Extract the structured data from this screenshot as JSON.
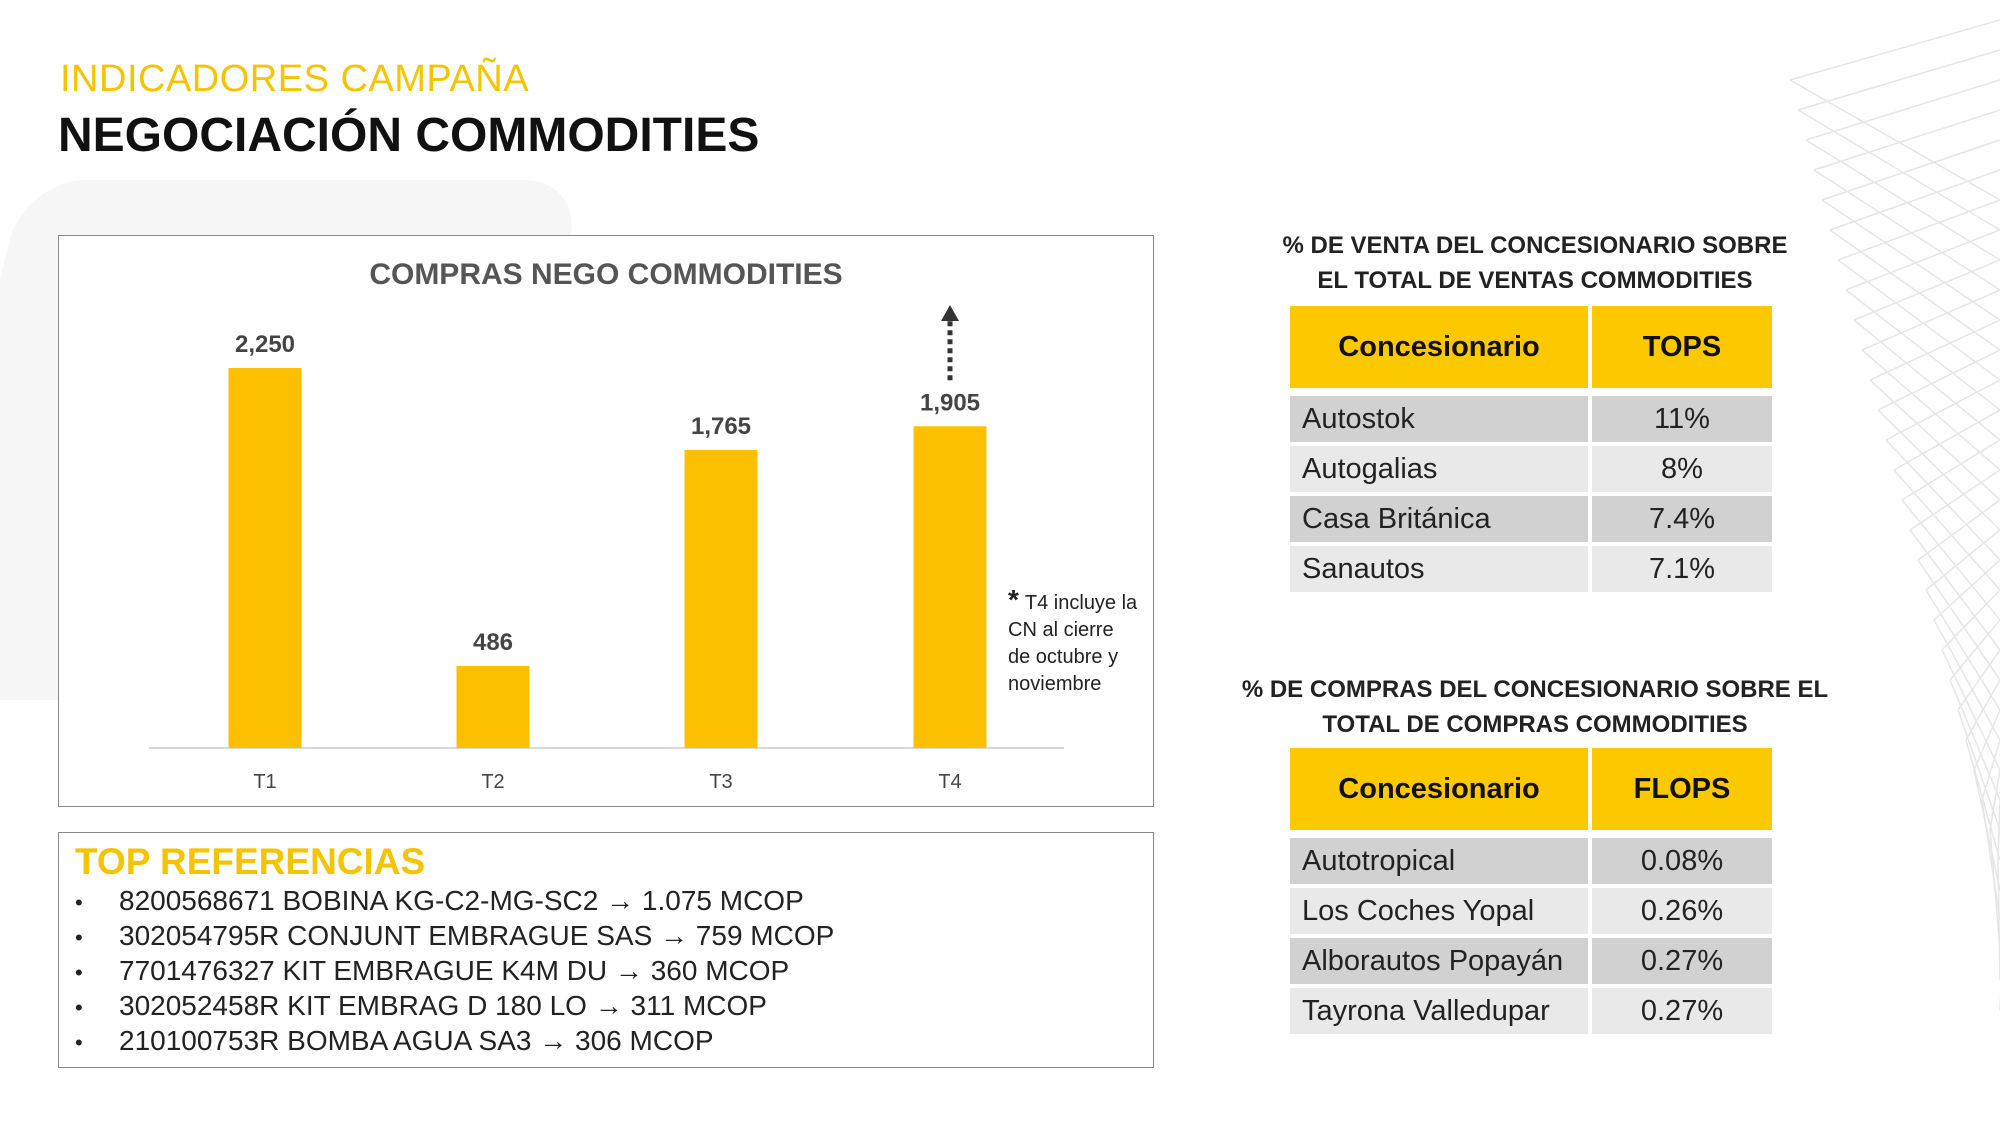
{
  "header": {
    "supertitle": "INDICADORES CAMPAÑA",
    "title": "NEGOCIACIÓN COMMODITIES"
  },
  "colors": {
    "accent": "#fcc900",
    "accent_text": "#f5c400",
    "bar": "#fcc000",
    "row_dark": "#d1d1d1",
    "row_light": "#e9e9e9"
  },
  "chart_data": {
    "type": "bar",
    "title": "COMPRAS NEGO COMMODITIES",
    "categories": [
      "T1",
      "T2",
      "T3",
      "T4"
    ],
    "values": [
      2250,
      486,
      1765,
      1905
    ],
    "value_labels": [
      "2,250",
      "486",
      "1,765",
      "1,905"
    ],
    "xlabel": "",
    "ylabel": "",
    "ylim": [
      0,
      2250
    ],
    "grid": false,
    "annotation": "T4 includes an upward dotted arrow above the bar"
  },
  "footnote": {
    "marker": "*",
    "text": "T4 incluye la CN al cierre de octubre y noviembre"
  },
  "top_referencias": {
    "title": "TOP REFERENCIAS",
    "items": [
      "8200568671 BOBINA  KG-C2-MG-SC2 → 1.075 MCOP",
      "302054795R CONJUNT EMBRAGUE SAS  → 759 MCOP",
      "7701476327 KIT EMBRAGUE K4M  DU  → 360 MCOP",
      "302052458R KIT EMBRAG D 180 LO → 311 MCOP",
      "210100753R BOMBA AGUA SA3 → 306 MCOP"
    ]
  },
  "ventas_table": {
    "heading_line1": "% DE VENTA DEL CONCESIONARIO SOBRE",
    "heading_line2": "EL TOTAL DE VENTAS COMMODITIES",
    "col1": "Concesionario",
    "col2": "TOPS",
    "rows": [
      {
        "name": "Autostok",
        "value": "11%"
      },
      {
        "name": "Autogalias",
        "value": "8%"
      },
      {
        "name": "Casa Británica",
        "value": "7.4%"
      },
      {
        "name": "Sanautos",
        "value": "7.1%"
      }
    ]
  },
  "compras_table": {
    "heading_line1": "% DE COMPRAS DEL CONCESIONARIO SOBRE EL",
    "heading_line2": "TOTAL DE COMPRAS COMMODITIES",
    "col1": "Concesionario",
    "col2": "FLOPS",
    "rows": [
      {
        "name": "Autotropical",
        "value": "0.08%"
      },
      {
        "name": "Los Coches Yopal",
        "value": "0.26%"
      },
      {
        "name": "Alborautos Popayán",
        "value": "0.27%"
      },
      {
        "name": "Tayrona Valledupar",
        "value": "0.27%"
      }
    ]
  }
}
